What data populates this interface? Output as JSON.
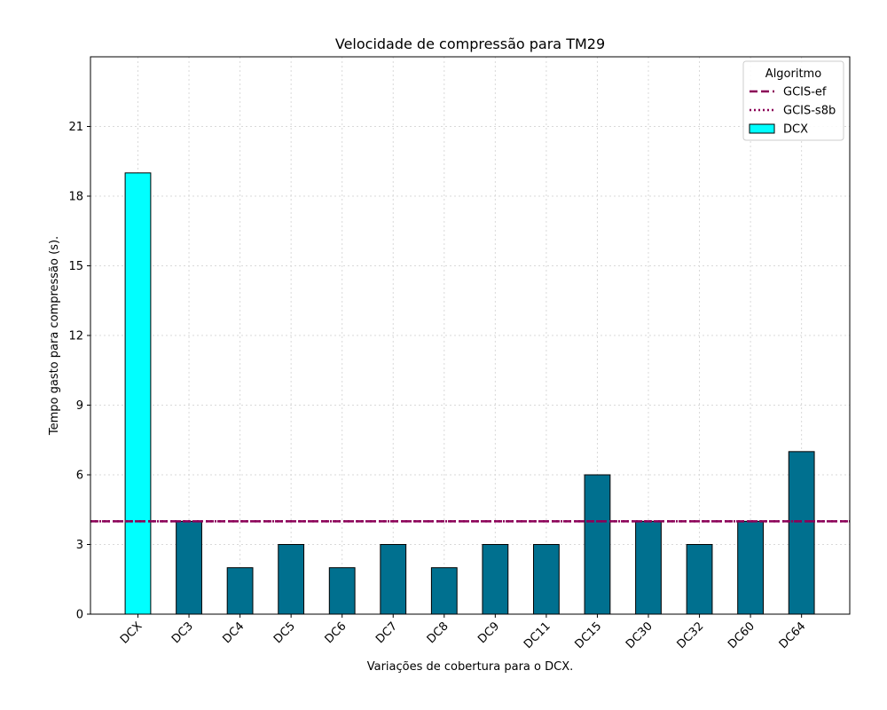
{
  "chart_data": {
    "type": "bar",
    "title": "Velocidade de compressão para  TM29",
    "xlabel": "Variações de cobertura para o DCX.",
    "ylabel": "Tempo gasto para compressão (s).",
    "categories": [
      "DCX",
      "DC3",
      "DC4",
      "DC5",
      "DC6",
      "DC7",
      "DC8",
      "DC9",
      "DC11",
      "DC15",
      "DC30",
      "DC32",
      "DC60",
      "DC64"
    ],
    "values": [
      19,
      4,
      2,
      3,
      2,
      3,
      2,
      3,
      3,
      6,
      4,
      3,
      4,
      7
    ],
    "bar_colors": [
      "#00ffff",
      "#00708f",
      "#00708f",
      "#00708f",
      "#00708f",
      "#00708f",
      "#00708f",
      "#00708f",
      "#00708f",
      "#00708f",
      "#00708f",
      "#00708f",
      "#00708f",
      "#00708f"
    ],
    "ylim": [
      0,
      24
    ],
    "yticks": [
      0,
      3,
      6,
      9,
      12,
      15,
      18,
      21
    ],
    "grid": true,
    "reference_lines": [
      {
        "name": "GCIS-ef",
        "y": 4,
        "style": "dashed",
        "color": "#8b0057"
      },
      {
        "name": "GCIS-s8b",
        "y": 4,
        "style": "dotted",
        "color": "#8b0057"
      }
    ],
    "legend": {
      "title": "Algoritmo",
      "placement": "top-right",
      "entries": [
        {
          "label": "GCIS-ef",
          "kind": "dashed-line",
          "color": "#8b0057"
        },
        {
          "label": "GCIS-s8b",
          "kind": "dotted-line",
          "color": "#8b0057"
        },
        {
          "label": "DCX",
          "kind": "patch",
          "color": "#00ffff"
        }
      ]
    }
  }
}
